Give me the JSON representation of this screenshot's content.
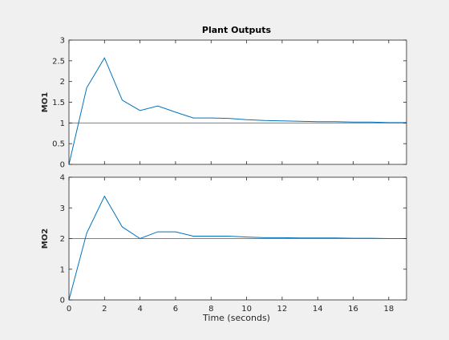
{
  "figure": {
    "background": "#f0f0f0",
    "title": "Plant Outputs",
    "xlabel": "Time (seconds)"
  },
  "chart_data": [
    {
      "type": "line",
      "ylabel": "MO1",
      "xlim": [
        0,
        19
      ],
      "ylim": [
        0,
        3
      ],
      "xticks": [
        0,
        2,
        4,
        6,
        8,
        10,
        12,
        14,
        16,
        18
      ],
      "xtick_labels": [],
      "yticks": [
        0,
        0.5,
        1,
        1.5,
        2,
        2.5,
        3
      ],
      "ytick_labels": [
        "0",
        "0.5",
        "1",
        "1.5",
        "2",
        "2.5",
        "3"
      ],
      "grid": false,
      "reference": {
        "y": 1,
        "color": "#808080"
      },
      "series": [
        {
          "color": "#0072bd",
          "x": [
            0,
            1,
            2,
            3,
            4,
            5,
            6,
            7,
            8,
            9,
            10,
            11,
            12,
            13,
            14,
            15,
            16,
            17,
            18,
            19
          ],
          "y": [
            0,
            1.85,
            2.57,
            1.55,
            1.3,
            1.41,
            1.26,
            1.12,
            1.12,
            1.11,
            1.08,
            1.06,
            1.05,
            1.04,
            1.03,
            1.03,
            1.02,
            1.02,
            1.01,
            1.01
          ]
        }
      ]
    },
    {
      "type": "line",
      "ylabel": "MO2",
      "xlim": [
        0,
        19
      ],
      "ylim": [
        0,
        4
      ],
      "xticks": [
        0,
        2,
        4,
        6,
        8,
        10,
        12,
        14,
        16,
        18
      ],
      "xtick_labels": [
        "0",
        "2",
        "4",
        "6",
        "8",
        "10",
        "12",
        "14",
        "16",
        "18"
      ],
      "yticks": [
        0,
        1,
        2,
        3,
        4
      ],
      "ytick_labels": [
        "0",
        "1",
        "2",
        "3",
        "4"
      ],
      "grid": false,
      "reference": {
        "y": 2,
        "color": "#808080"
      },
      "series": [
        {
          "color": "#0072bd",
          "x": [
            0,
            1,
            2,
            3,
            4,
            5,
            6,
            7,
            8,
            9,
            10,
            11,
            12,
            13,
            14,
            15,
            16,
            17,
            18,
            19
          ],
          "y": [
            0,
            2.18,
            3.38,
            2.38,
            2.0,
            2.22,
            2.22,
            2.08,
            2.08,
            2.08,
            2.05,
            2.03,
            2.03,
            2.02,
            2.02,
            2.02,
            2.01,
            2.01,
            2.0,
            2.0
          ]
        }
      ]
    }
  ]
}
